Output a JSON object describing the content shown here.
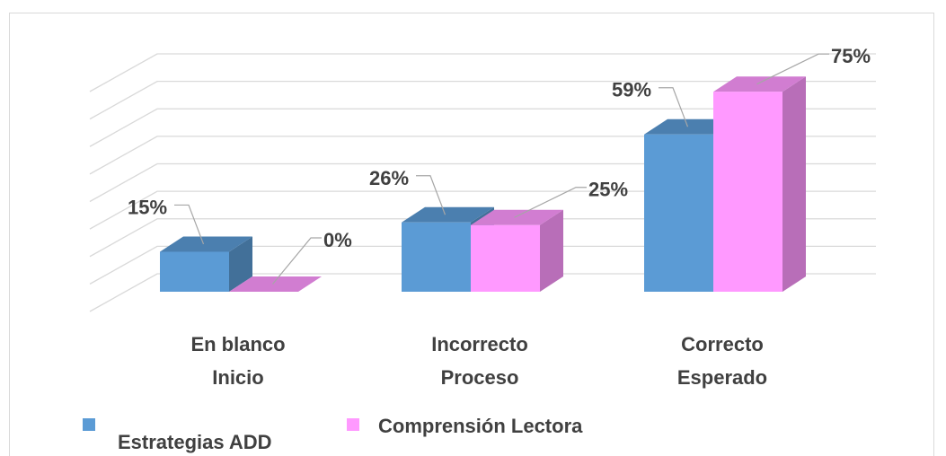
{
  "chart_data": {
    "type": "bar",
    "categories": [
      [
        "En blanco",
        "Inicio"
      ],
      [
        "Incorrecto",
        "Proceso"
      ],
      [
        "Correcto",
        "Esperado"
      ]
    ],
    "series": [
      {
        "name": "Estrategias ADD",
        "values": [
          15,
          26,
          59
        ],
        "labels": [
          "15%",
          "26%",
          "59%"
        ],
        "color": "#5b9bd5"
      },
      {
        "name": "Comprensión Lectora",
        "values": [
          0,
          25,
          75
        ],
        "labels": [
          "0%",
          "25%",
          "75%"
        ],
        "color": "#ff99ff"
      }
    ],
    "ylim": [
      0,
      80
    ],
    "grid": true,
    "legend_position": "bottom",
    "title": "",
    "xlabel": "",
    "ylabel": ""
  }
}
